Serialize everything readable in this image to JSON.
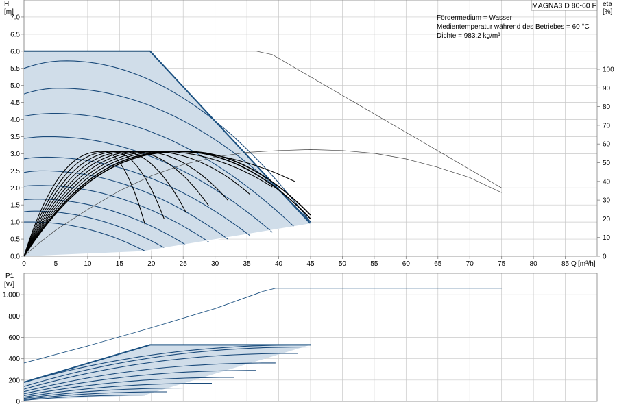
{
  "product_label": "MAGNA3 D 80-60 F",
  "medium_info": {
    "line1": "Fördermedium = Wasser",
    "line2": "Medientemperatur während des Betriebes = 60 °C",
    "line3": "Dichte = 983.2 kg/m³"
  },
  "colors": {
    "grid": "#c8c8c8",
    "axis": "#808080",
    "curve_blue": "#1a4a7a",
    "envelope": "#1a5080",
    "fill": "#d0dde9",
    "eff_black": "#000000",
    "ref_line": "#444444"
  },
  "chart_data": [
    {
      "type": "line",
      "id": "head",
      "ylabel": "H",
      "yunit": "[m]",
      "y2label": "eta",
      "y2unit": "[%]",
      "xlabel": "Q",
      "xunit": "[m³/h]",
      "xlim": [
        0,
        90
      ],
      "ylim": [
        0,
        7.5
      ],
      "y2lim": [
        0,
        137
      ],
      "xticks": [
        0,
        5,
        10,
        15,
        20,
        25,
        30,
        35,
        40,
        45,
        50,
        55,
        60,
        65,
        70,
        75,
        80,
        85
      ],
      "yticks": [
        0.0,
        0.5,
        1.0,
        1.5,
        2.0,
        2.5,
        3.0,
        3.5,
        4.0,
        4.5,
        5.0,
        5.5,
        6.0,
        6.5,
        7.0
      ],
      "ytick_labels": [
        "0.0",
        "0.5",
        "1.0",
        "1.5",
        "2.0",
        "2.5",
        "3.0",
        "3.5",
        "4.0",
        "4.5",
        "5.0",
        "5.5",
        "6.0",
        "6.5",
        "7.0"
      ],
      "y2ticks": [
        0,
        10,
        20,
        30,
        40,
        50,
        60,
        70,
        80,
        90,
        100
      ],
      "grid": true,
      "operating_area": [
        [
          0,
          6.0
        ],
        [
          19.8,
          6.0
        ],
        [
          45,
          0.95
        ],
        [
          19,
          0.15
        ],
        [
          0,
          0
        ]
      ],
      "speed_curves": [
        {
          "H0": 1.0,
          "peakQ": 1.2,
          "peakH": 1.0,
          "Qend": 19.0,
          "Hend": 0.15
        },
        {
          "H0": 1.3,
          "peakQ": 1.6,
          "peakH": 1.32,
          "Qend": 22.0,
          "Hend": 0.25
        },
        {
          "H0": 1.65,
          "peakQ": 2.0,
          "peakH": 1.67,
          "Qend": 25.5,
          "Hend": 0.32
        },
        {
          "H0": 2.05,
          "peakQ": 2.4,
          "peakH": 2.07,
          "Qend": 29.0,
          "Hend": 0.42
        },
        {
          "H0": 2.45,
          "peakQ": 2.8,
          "peakH": 2.5,
          "Qend": 32.0,
          "Hend": 0.5
        },
        {
          "H0": 2.85,
          "peakQ": 3.2,
          "peakH": 2.9,
          "Qend": 35.5,
          "Hend": 0.6
        },
        {
          "H0": 3.45,
          "peakQ": 4.0,
          "peakH": 3.5,
          "Qend": 39.0,
          "Hend": 0.7
        },
        {
          "H0": 4.1,
          "peakQ": 4.8,
          "peakH": 4.18,
          "Qend": 42.5,
          "Hend": 0.85
        },
        {
          "H0": 4.75,
          "peakQ": 5.5,
          "peakH": 4.92,
          "Qend": 45.0,
          "Hend": 1.0
        },
        {
          "H0": 5.5,
          "peakQ": 6.5,
          "peakH": 5.72,
          "Qend": 45.0,
          "Hend": 1.0
        }
      ],
      "efficiency_curves": [
        {
          "Qpeak": 12.5,
          "Qend": 19.0,
          "eta_end": 17
        },
        {
          "Qpeak": 14.0,
          "Qend": 22.0,
          "eta_end": 20
        },
        {
          "Qpeak": 15.5,
          "Qend": 25.5,
          "eta_end": 23
        },
        {
          "Qpeak": 17.0,
          "Qend": 29.0,
          "eta_end": 27
        },
        {
          "Qpeak": 18.5,
          "Qend": 32.0,
          "eta_end": 30
        },
        {
          "Qpeak": 20.0,
          "Qend": 35.5,
          "eta_end": 33
        },
        {
          "Qpeak": 21.5,
          "Qend": 39.0,
          "eta_end": 37
        },
        {
          "Qpeak": 23.0,
          "Qend": 42.5,
          "eta_end": 40
        },
        {
          "Qpeak": 24.5,
          "Qend": 45.0,
          "eta_end": 20
        },
        {
          "Qpeak": 25.5,
          "Qend": 45.0,
          "eta_end": 22
        }
      ],
      "eta_peak": 56,
      "twin_head": {
        "x": [
          0,
          36.5,
          39.0,
          75.0
        ],
        "y": [
          6.0,
          6.0,
          5.9,
          2.0
        ]
      },
      "twin_eta": {
        "x": [
          0,
          2,
          5,
          10,
          15,
          20,
          25,
          30,
          35,
          40,
          45,
          50,
          55,
          60,
          65,
          70,
          75
        ],
        "y": [
          0,
          6,
          14,
          25,
          35,
          43,
          49,
          53,
          55.5,
          56.5,
          57,
          56.5,
          55,
          52,
          47.5,
          42,
          34
        ]
      }
    },
    {
      "type": "line",
      "id": "power",
      "ylabel": "P1",
      "yunit": "[W]",
      "xlim": [
        0,
        90
      ],
      "ylim": [
        0,
        1200
      ],
      "yticks": [
        0,
        200,
        400,
        600,
        800,
        1000
      ],
      "ytick_labels": [
        "0",
        "200",
        "400",
        "600",
        "800",
        "1.000"
      ],
      "grid": true,
      "operating_area": [
        [
          0,
          180
        ],
        [
          19.8,
          530
        ],
        [
          45,
          530
        ],
        [
          19,
          60
        ],
        [
          0,
          10
        ]
      ],
      "power_curves": [
        {
          "P0": 10,
          "Qend": 19.0,
          "Pend": 60
        },
        {
          "P0": 18,
          "Qend": 22.5,
          "Pend": 90
        },
        {
          "P0": 28,
          "Qend": 26.0,
          "Pend": 125
        },
        {
          "P0": 40,
          "Qend": 29.5,
          "Pend": 170
        },
        {
          "P0": 55,
          "Qend": 33.0,
          "Pend": 225
        },
        {
          "P0": 72,
          "Qend": 36.5,
          "Pend": 290
        },
        {
          "P0": 92,
          "Qend": 39.5,
          "Pend": 360
        },
        {
          "P0": 115,
          "Qend": 43.0,
          "Pend": 450
        },
        {
          "P0": 140,
          "Qend": 45.0,
          "Pend": 510
        },
        {
          "P0": 180,
          "Qend": 45.0,
          "Pend": 530
        }
      ],
      "twin_power": {
        "x": [
          0,
          10,
          20,
          30,
          37.5,
          39.5,
          75
        ],
        "y": [
          360,
          520,
          690,
          870,
          1030,
          1060,
          1060
        ]
      }
    }
  ]
}
